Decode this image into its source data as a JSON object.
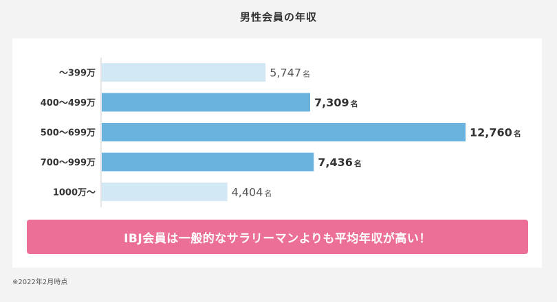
{
  "chart_data": {
    "type": "bar",
    "orientation": "horizontal",
    "title": "男性会員の年収",
    "categories": [
      "～399万",
      "400～499万",
      "500～699万",
      "700～999万",
      "1000万～"
    ],
    "values": [
      5747,
      7309,
      12760,
      7436,
      4404
    ],
    "value_labels": [
      "5,747",
      "7,309",
      "12,760",
      "7,436",
      "4,404"
    ],
    "unit": "名",
    "highlighted": [
      false,
      true,
      true,
      true,
      false
    ],
    "colors": {
      "highlight": "#6ab3df",
      "normal": "#d3e8f5",
      "axis": "#cccccc"
    },
    "xlim": [
      0,
      12760
    ],
    "grid": false,
    "legend": "none"
  },
  "banner": {
    "text": "IBJ会員は一般的なサラリーマンよりも平均年収が高い！"
  },
  "footnote": "※2022年2月時点"
}
